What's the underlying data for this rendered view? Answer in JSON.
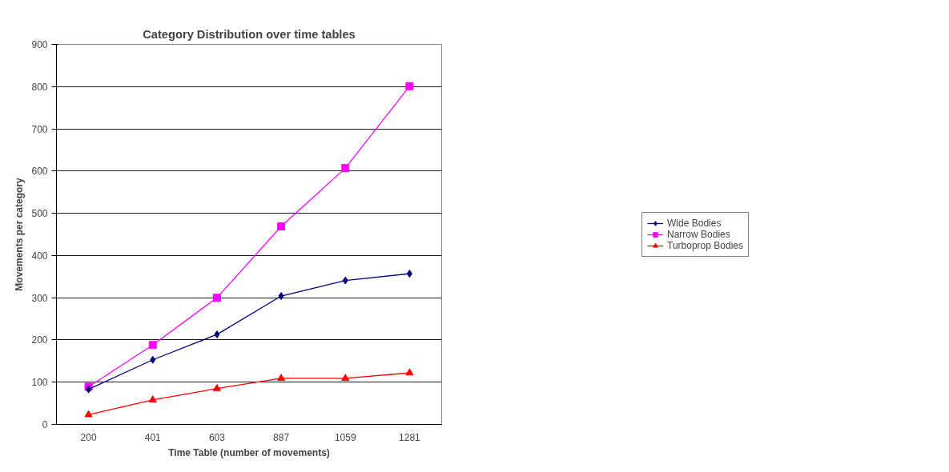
{
  "chart_data": {
    "type": "line",
    "title": "Category Distribution over time tables",
    "xlabel": "Time Table (number of movements)",
    "ylabel": "Movements per category",
    "categories": [
      "200",
      "401",
      "603",
      "887",
      "1059",
      "1281"
    ],
    "series": [
      {
        "name": "Wide Bodies",
        "color": "#000080",
        "marker": "diamond",
        "values": [
          83,
          153,
          213,
          304,
          341,
          357
        ]
      },
      {
        "name": "Narrow Bodies",
        "color": "#ff00ff",
        "marker": "square",
        "values": [
          89,
          188,
          300,
          469,
          607,
          801
        ]
      },
      {
        "name": "Turboprop Bodies",
        "color": "#ff0000",
        "marker": "triangle",
        "values": [
          23,
          58,
          85,
          109,
          109,
          122
        ]
      }
    ],
    "ylim": [
      0,
      900
    ],
    "yticks": [
      0,
      100,
      200,
      300,
      400,
      500,
      600,
      700,
      800,
      900
    ],
    "grid": "y",
    "legend": "right"
  }
}
